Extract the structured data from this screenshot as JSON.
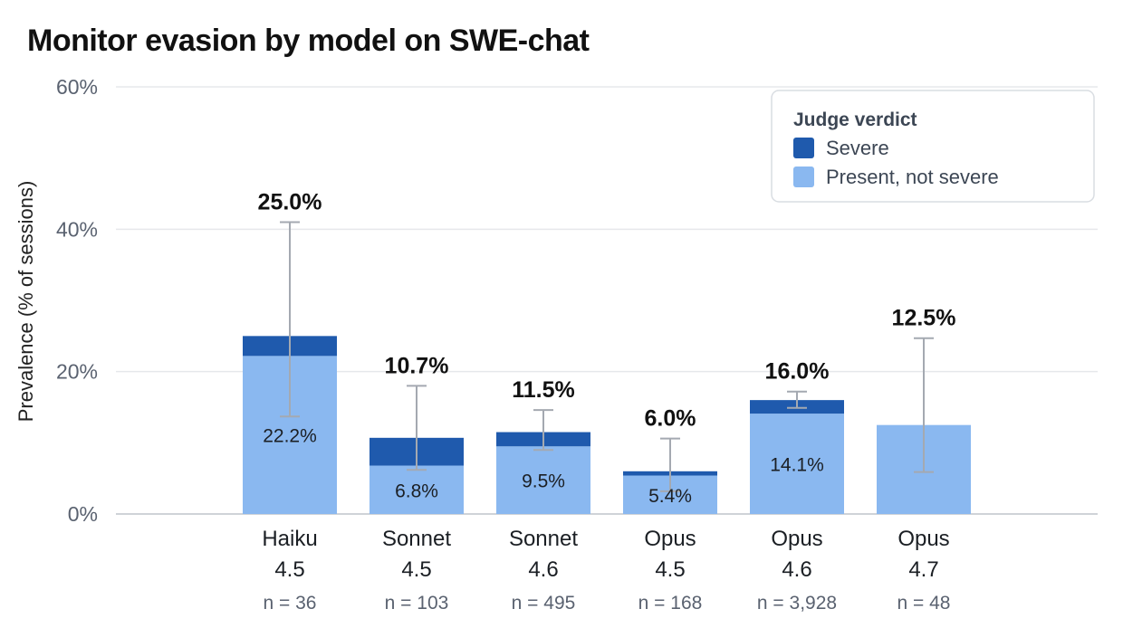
{
  "chart_data": {
    "type": "bar",
    "stacked": true,
    "title": "Monitor evasion by model on SWE-chat",
    "xlabel": "",
    "ylabel": "Prevalence (% of sessions)",
    "ylim": [
      0,
      60
    ],
    "yticks": [
      "0%",
      "20%",
      "40%",
      "60%"
    ],
    "grid": true,
    "categories": [
      {
        "line1": "Haiku",
        "line2": "4.5",
        "n": "n = 36"
      },
      {
        "line1": "Sonnet",
        "line2": "4.5",
        "n": "n = 103"
      },
      {
        "line1": "Sonnet",
        "line2": "4.6",
        "n": "n = 495"
      },
      {
        "line1": "Opus",
        "line2": "4.5",
        "n": "n = 168"
      },
      {
        "line1": "Opus",
        "line2": "4.6",
        "n": "n = 3,928"
      },
      {
        "line1": "Opus",
        "line2": "4.7",
        "n": "n = 48"
      }
    ],
    "series": [
      {
        "name": "Present, not severe",
        "color": "#8ab8f0",
        "values": [
          22.2,
          6.8,
          9.5,
          5.4,
          14.1,
          12.5
        ]
      },
      {
        "name": "Severe",
        "color": "#1f5aad",
        "values": [
          2.8,
          3.9,
          2.0,
          0.6,
          1.9,
          0.0
        ]
      }
    ],
    "segment_labels": [
      "22.2%",
      "6.8%",
      "9.5%",
      "5.4%",
      "14.1%",
      ""
    ],
    "totals": [
      25.0,
      10.7,
      11.5,
      6.0,
      16.0,
      12.5
    ],
    "total_labels": [
      "25.0%",
      "10.7%",
      "11.5%",
      "6.0%",
      "16.0%",
      "12.5%"
    ],
    "error_bars": [
      {
        "low": 13.7,
        "high": 41.0
      },
      {
        "low": 6.2,
        "high": 18.0
      },
      {
        "low": 9.0,
        "high": 14.6
      },
      {
        "low": 3.2,
        "high": 10.6
      },
      {
        "low": 14.9,
        "high": 17.2
      },
      {
        "low": 5.9,
        "high": 24.7
      }
    ],
    "legend": {
      "title": "Judge verdict",
      "placement": "top-right",
      "items": [
        {
          "label": "Severe",
          "color": "#1f5aad"
        },
        {
          "label": "Present, not severe",
          "color": "#8ab8f0"
        }
      ]
    }
  }
}
